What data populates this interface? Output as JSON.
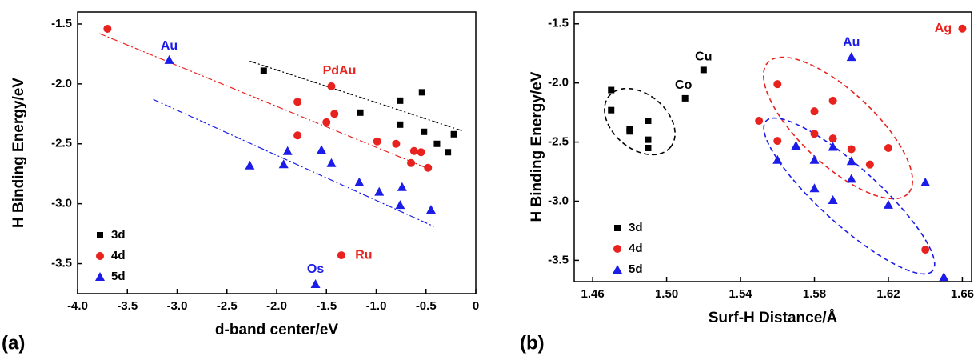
{
  "chart_data": [
    {
      "type": "scatter",
      "panel_label": "(a)",
      "x_label": "d-band center/eV",
      "y_label": "H Binding Energy/eV",
      "xlim": [
        -4,
        0
      ],
      "ylim": [
        -1.4,
        -3.75
      ],
      "xticks": [
        {
          "value": -4,
          "label": "-4.0"
        },
        -3.5,
        {
          "value": -3,
          "label": "-3.0"
        },
        -2.5,
        {
          "value": -2,
          "label": "-2.0"
        },
        -1.5,
        {
          "value": -1,
          "label": "-1.0"
        },
        -0.5,
        0
      ],
      "yticks": [
        -1.5,
        {
          "value": -2,
          "label": "-2.0"
        },
        -2.5,
        {
          "value": -3,
          "label": "-3.0"
        },
        -3.5
      ],
      "legend": "lower left",
      "series": [
        {
          "name": "3d",
          "color": "#000000",
          "marker": "square",
          "x": [
            -2.13,
            -1.16,
            -0.76,
            -0.76,
            -0.54,
            -0.52,
            -0.39,
            -0.22,
            -0.28
          ],
          "y": [
            -1.89,
            -2.24,
            -2.14,
            -2.34,
            -2.07,
            -2.4,
            -2.5,
            -2.42,
            -2.57
          ],
          "trendline": {
            "x": [
              -2.27,
              -0.14
            ],
            "y": [
              -1.81,
              -2.39
            ]
          }
        },
        {
          "name": "4d",
          "color": "#e8231f",
          "marker": "circle",
          "x": [
            -3.7,
            -1.45,
            -1.79,
            -1.42,
            -1.5,
            -1.79,
            -0.99,
            -0.8,
            -0.62,
            -0.55,
            -0.65,
            -0.48,
            -1.35
          ],
          "y": [
            -1.54,
            -2.02,
            -2.15,
            -2.25,
            -2.32,
            -2.43,
            -2.48,
            -2.5,
            -2.56,
            -2.57,
            -2.66,
            -2.7,
            -3.43
          ],
          "trendline": {
            "x": [
              -3.78,
              -0.44
            ],
            "y": [
              -1.58,
              -2.72
            ]
          }
        },
        {
          "name": "5d",
          "color": "#1c1ce8",
          "marker": "triangle",
          "x": [
            -3.08,
            -1.89,
            -2.27,
            -1.93,
            -1.55,
            -1.45,
            -1.17,
            -0.97,
            -0.74,
            -0.76,
            -0.45,
            -1.61
          ],
          "y": [
            -1.8,
            -2.56,
            -2.68,
            -2.67,
            -2.55,
            -2.66,
            -2.82,
            -2.9,
            -2.86,
            -3.01,
            -3.05,
            -3.67
          ],
          "trendline": {
            "x": [
              -3.24,
              -0.42
            ],
            "y": [
              -2.13,
              -3.19
            ]
          }
        }
      ],
      "annotations": [
        {
          "text": "Au",
          "color": "#1c1ce8"
        },
        {
          "text": "PdAu",
          "color": "#e8231f"
        },
        {
          "text": "Ru",
          "color": "#e8231f"
        },
        {
          "text": "Os",
          "color": "#1c1ce8"
        }
      ]
    },
    {
      "type": "scatter",
      "panel_label": "(b)",
      "x_label": "Surf-H Distance/Å",
      "y_label": "H Binding Energy/eV",
      "xlim": [
        1.45,
        1.665
      ],
      "ylim": [
        -1.4,
        -3.68
      ],
      "xticks": [
        1.46,
        {
          "value": 1.5,
          "label": "1.50"
        },
        1.54,
        1.58,
        1.62,
        1.66
      ],
      "yticks": [
        -1.5,
        {
          "value": -2,
          "label": "-2.0"
        },
        -2.5,
        {
          "value": -3,
          "label": "-3.0"
        },
        -3.5
      ],
      "legend": "lower left",
      "series": [
        {
          "name": "3d",
          "color": "#000000",
          "marker": "square",
          "x": [
            1.47,
            1.47,
            1.48,
            1.48,
            1.49,
            1.49,
            1.49,
            1.51,
            1.52
          ],
          "y": [
            -2.06,
            -2.23,
            -2.39,
            -2.41,
            -2.32,
            -2.48,
            -2.55,
            -2.13,
            -1.89
          ]
        },
        {
          "name": "4d",
          "color": "#e8231f",
          "marker": "circle",
          "x": [
            1.66,
            1.56,
            1.58,
            1.59,
            1.55,
            1.58,
            1.59,
            1.6,
            1.56,
            1.62,
            1.61,
            1.64
          ],
          "y": [
            -1.54,
            -2.01,
            -2.24,
            -2.15,
            -2.32,
            -2.43,
            -2.47,
            -2.56,
            -2.49,
            -2.55,
            -2.69,
            -3.41
          ]
        },
        {
          "name": "5d",
          "color": "#1c1ce8",
          "marker": "triangle",
          "x": [
            1.6,
            1.57,
            1.59,
            1.56,
            1.58,
            1.6,
            1.58,
            1.6,
            1.59,
            1.62,
            1.64,
            1.65
          ],
          "y": [
            -1.78,
            -2.53,
            -2.54,
            -2.65,
            -2.65,
            -2.66,
            -2.89,
            -2.81,
            -2.99,
            -3.03,
            -2.84,
            -3.64
          ]
        }
      ],
      "annotations": [
        {
          "text": "Cu",
          "color": "#000000"
        },
        {
          "text": "Co",
          "color": "#000000"
        },
        {
          "text": "Au",
          "color": "#1c1ce8"
        },
        {
          "text": "Ag",
          "color": "#e8231f"
        }
      ]
    }
  ]
}
